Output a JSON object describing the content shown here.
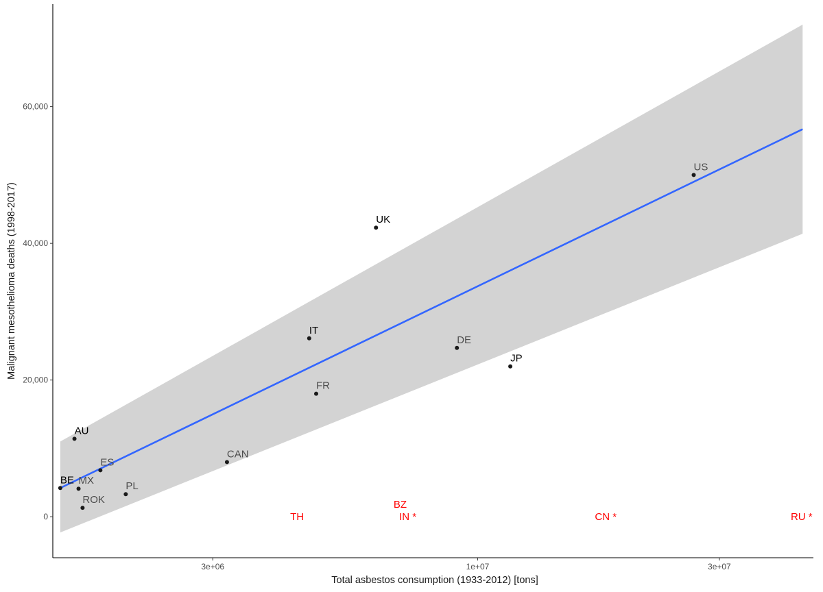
{
  "chart_data": {
    "type": "scatter",
    "title": "",
    "xlabel": "Total asbestos consumption (1933-2012) [tons]",
    "ylabel": "Malignant mesothelioma deaths (1998-2017)",
    "x_scale": "log10",
    "xlim": [
      1450000,
      46000000
    ],
    "ylim": [
      -6000,
      75000
    ],
    "x_ticks": [
      {
        "value": 3000000,
        "label": "3e+06"
      },
      {
        "value": 10000000,
        "label": "1e+07"
      },
      {
        "value": 30000000,
        "label": "3e+07"
      }
    ],
    "y_ticks": [
      {
        "value": 0,
        "label": "0"
      },
      {
        "value": 20000,
        "label": "20,000"
      },
      {
        "value": 40000,
        "label": "40,000"
      },
      {
        "value": 60000,
        "label": "60,000"
      }
    ],
    "grid": false,
    "legend": "none",
    "colors": {
      "point": "#1a1a1a",
      "label_dark": "#000000",
      "label_grey": "#4d4d4d",
      "label_red": "#ff0000",
      "fit_line": "#3366ff",
      "ribbon": "#d3d3d3"
    },
    "points": [
      {
        "label": "US",
        "x": 26700000,
        "y": 50000,
        "label_color": "grey"
      },
      {
        "label": "UK",
        "x": 6300000,
        "y": 42300,
        "label_color": "dark"
      },
      {
        "label": "IT",
        "x": 4650000,
        "y": 26100,
        "label_color": "dark"
      },
      {
        "label": "DE",
        "x": 9100000,
        "y": 24700,
        "label_color": "grey"
      },
      {
        "label": "JP",
        "x": 11600000,
        "y": 22000,
        "label_color": "dark"
      },
      {
        "label": "FR",
        "x": 4800000,
        "y": 18000,
        "label_color": "grey"
      },
      {
        "label": "AU",
        "x": 1600000,
        "y": 11400,
        "label_color": "dark"
      },
      {
        "label": "CAN",
        "x": 3200000,
        "y": 8000,
        "label_color": "grey"
      },
      {
        "label": "ES",
        "x": 1800000,
        "y": 6800,
        "label_color": "grey"
      },
      {
        "label": "BE",
        "x": 1500000,
        "y": 4200,
        "label_color": "dark"
      },
      {
        "label": "MX",
        "x": 1630000,
        "y": 4100,
        "label_color": "grey"
      },
      {
        "label": "PL",
        "x": 2020000,
        "y": 3300,
        "label_color": "grey"
      },
      {
        "label": "ROK",
        "x": 1660000,
        "y": 1300,
        "label_color": "grey"
      }
    ],
    "annotations": [
      {
        "text": "TH",
        "x": 4400000,
        "y": 0,
        "color": "red"
      },
      {
        "text": "BZ",
        "x": 7030000,
        "y": 1800,
        "color": "red"
      },
      {
        "text": "IN *",
        "x": 7280000,
        "y": 0,
        "color": "red"
      },
      {
        "text": "CN *",
        "x": 17900000,
        "y": 0,
        "color": "red"
      },
      {
        "text": "RU *",
        "x": 43600000,
        "y": 0,
        "color": "red"
      }
    ],
    "fit": {
      "method": "lm",
      "x": [
        1500000,
        43800000
      ],
      "y": [
        4200,
        56700
      ],
      "ci_lower": [
        -2300,
        41400
      ],
      "ci_upper": [
        11000,
        72000
      ]
    }
  }
}
